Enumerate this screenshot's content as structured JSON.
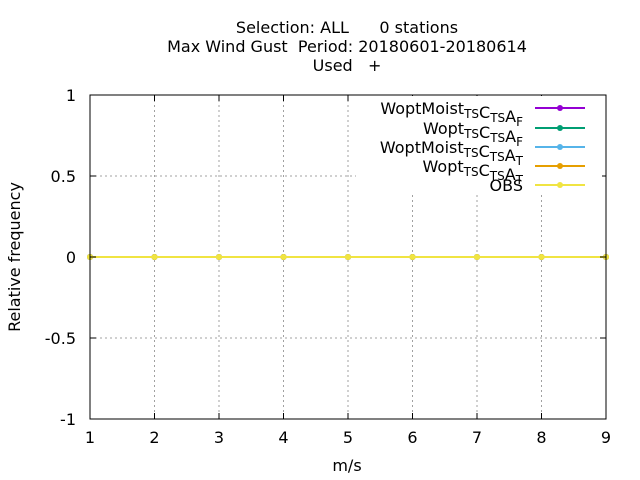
{
  "title": {
    "line1": "Selection: ALL      0 stations",
    "line2": "Max Wind Gust  Period: 20180601-20180614",
    "line3": "Used   +"
  },
  "chart_data": {
    "type": "line",
    "title": "Selection: ALL      0 stations\nMax Wind Gust  Period: 20180601-20180614\nUsed   +",
    "xlabel": "m/s",
    "ylabel": "Relative frequency",
    "xlim": [
      1,
      9
    ],
    "ylim": [
      -1,
      1
    ],
    "x_ticks": [
      "1",
      "2",
      "3",
      "4",
      "5",
      "6",
      "7",
      "8",
      "9"
    ],
    "y_ticks": [
      "1",
      "0.5",
      "0",
      "-0.5",
      "-1"
    ],
    "grid": true,
    "legend_position": "top-right",
    "x": [
      1,
      2,
      3,
      4,
      5,
      6,
      7,
      8,
      9
    ],
    "series": [
      {
        "name": "WoptMoist TS C TS A F",
        "label_main": [
          "WoptMoist",
          "C",
          "A"
        ],
        "label_sub": [
          "TS",
          "TS",
          "F"
        ],
        "color": "#9400d3",
        "values": [
          0,
          0,
          0,
          0,
          0,
          0,
          0,
          0,
          0
        ]
      },
      {
        "name": "Wopt TS C TS A F",
        "label_main": [
          "Wopt",
          "C",
          "A"
        ],
        "label_sub": [
          "TS",
          "TS",
          "F"
        ],
        "color": "#009e73",
        "values": [
          0,
          0,
          0,
          0,
          0,
          0,
          0,
          0,
          0
        ]
      },
      {
        "name": "WoptMoist TS C TS A T",
        "label_main": [
          "WoptMoist",
          "C",
          "A"
        ],
        "label_sub": [
          "TS",
          "TS",
          "T"
        ],
        "color": "#56b4e9",
        "values": [
          0,
          0,
          0,
          0,
          0,
          0,
          0,
          0,
          0
        ]
      },
      {
        "name": "Wopt TS C TS A T",
        "label_main": [
          "Wopt",
          "C",
          "A"
        ],
        "label_sub": [
          "TS",
          "TS",
          "T"
        ],
        "color": "#e69f00",
        "values": [
          0,
          0,
          0,
          0,
          0,
          0,
          0,
          0,
          0
        ]
      },
      {
        "name": "OBS",
        "label_main": [
          "OBS"
        ],
        "label_sub": [],
        "color": "#f0e442",
        "values": [
          0,
          0,
          0,
          0,
          0,
          0,
          0,
          0,
          0
        ]
      }
    ]
  }
}
